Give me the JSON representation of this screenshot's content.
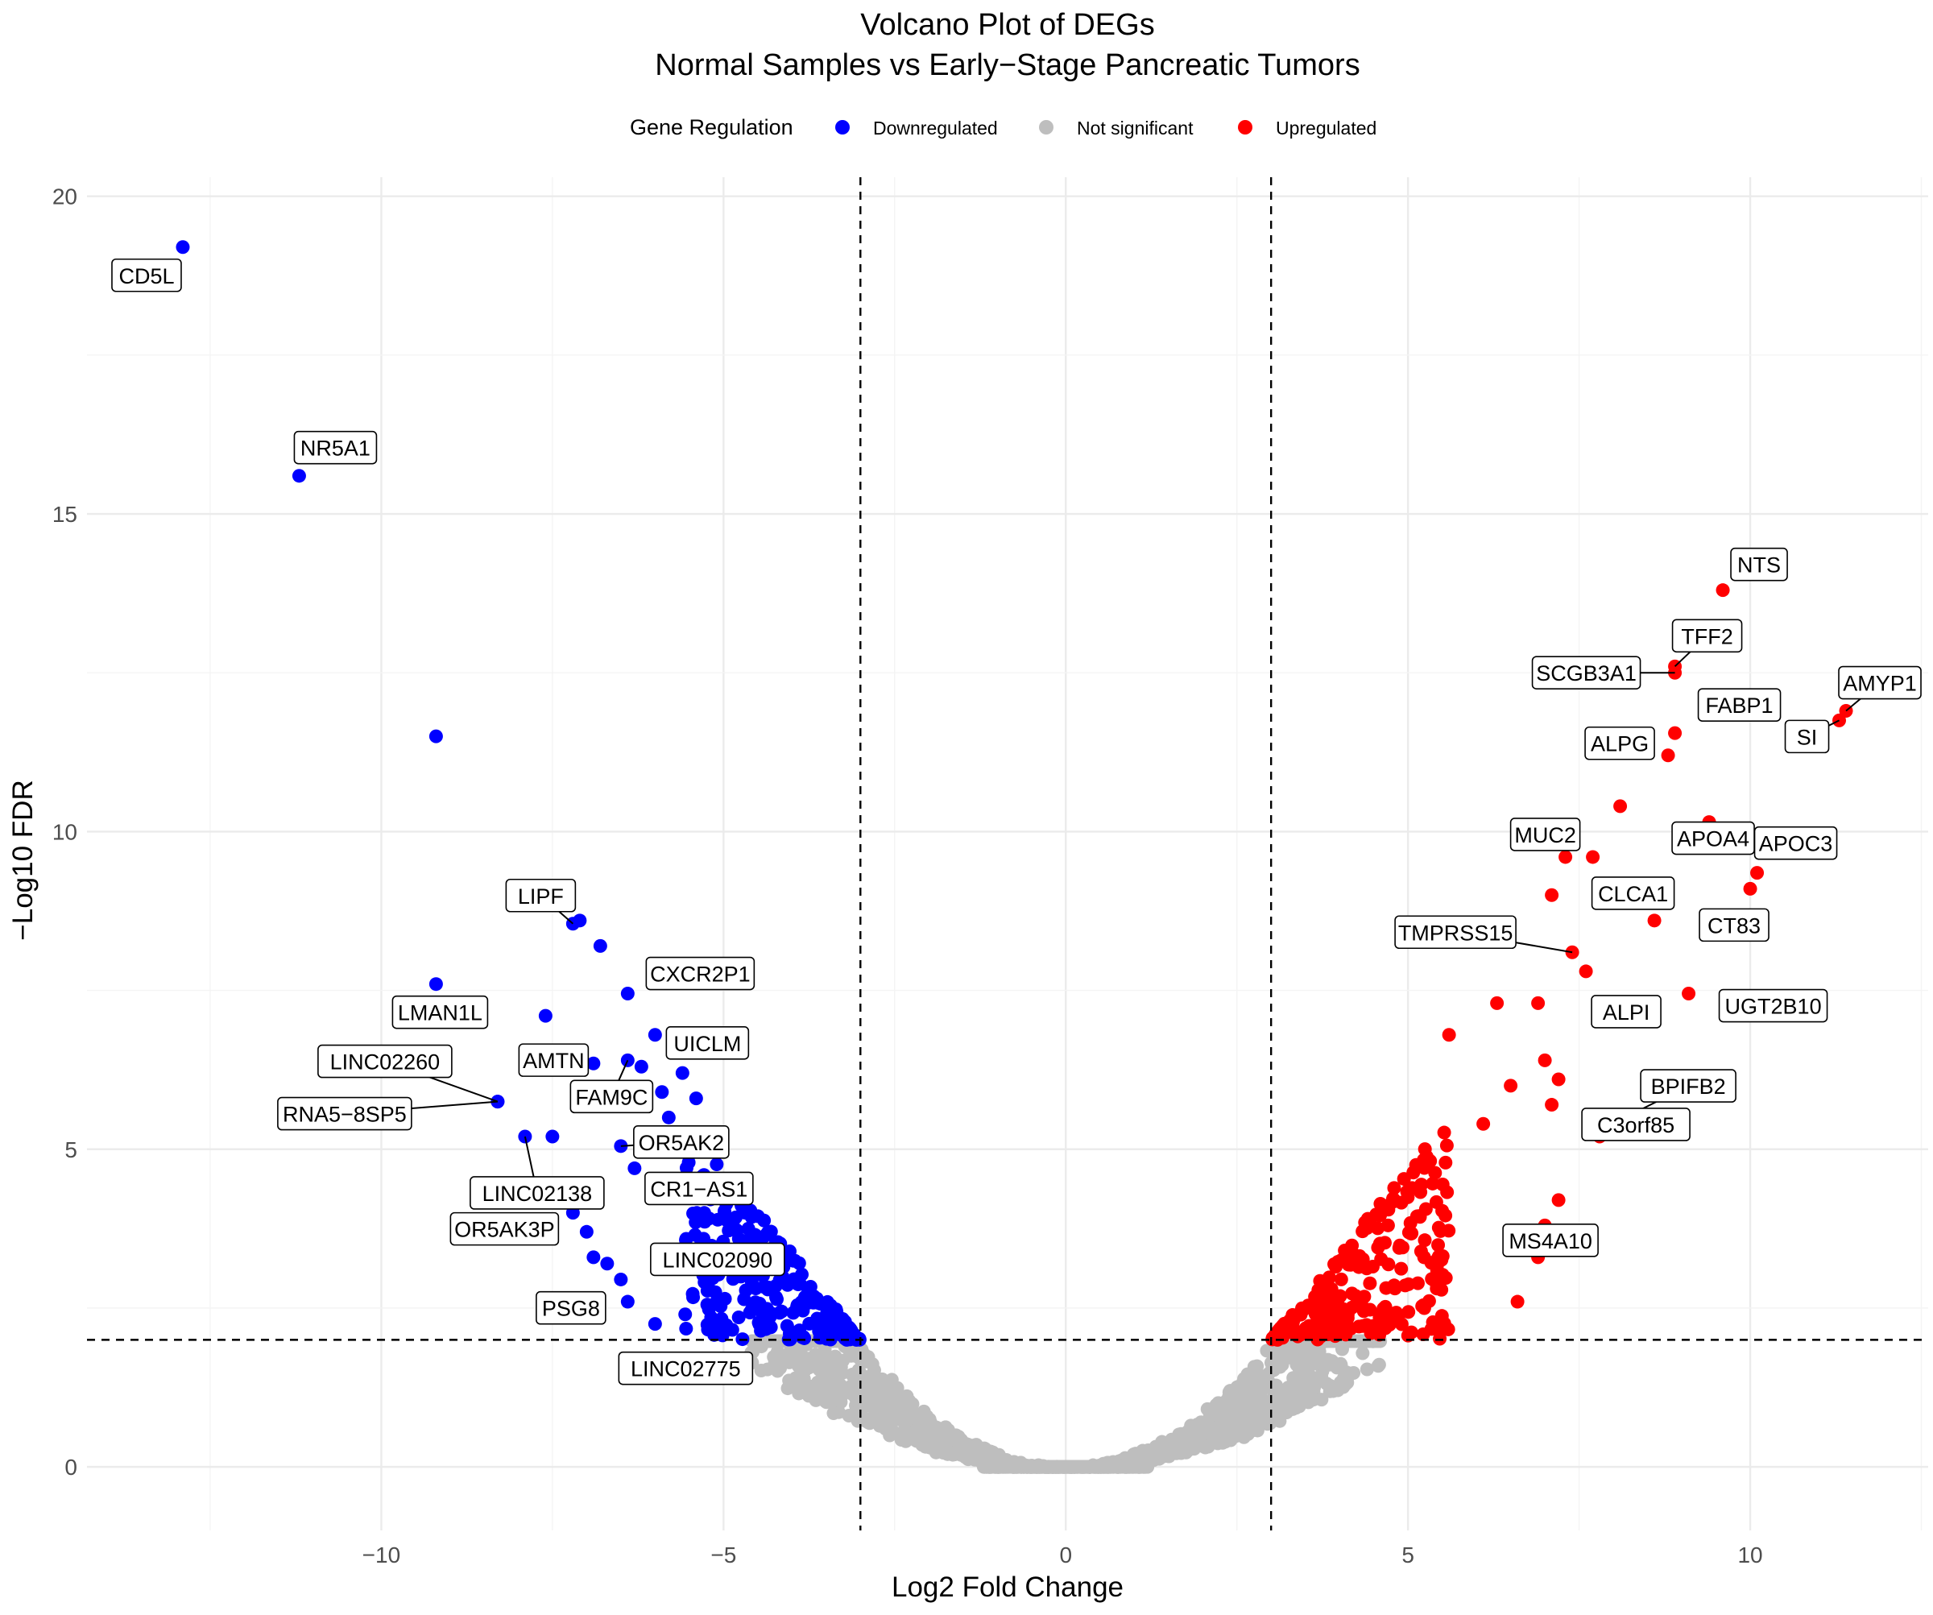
{
  "chart_data": {
    "type": "scatter",
    "title": "Volcano Plot of DEGs",
    "subtitle": "Normal Samples vs Early−Stage Pancreatic Tumors",
    "xlabel": "Log2 Fold Change",
    "ylabel": "−Log10 FDR",
    "xlim": [
      -14.3,
      12.6
    ],
    "ylim": [
      -1.0,
      20.3
    ],
    "x_ticks": [
      {
        "value": -10,
        "label": "−10"
      },
      {
        "value": -5,
        "label": "−5"
      },
      {
        "value": 0,
        "label": "0"
      },
      {
        "value": 5,
        "label": "5"
      },
      {
        "value": 10,
        "label": "10"
      }
    ],
    "y_ticks": [
      {
        "value": 0,
        "label": "0"
      },
      {
        "value": 5,
        "label": "5"
      },
      {
        "value": 10,
        "label": "10"
      },
      {
        "value": 15,
        "label": "15"
      },
      {
        "value": 20,
        "label": "20"
      }
    ],
    "thresholds": {
      "log2fc": [
        -3,
        3
      ],
      "neg_log10_fdr": 2
    },
    "grid": true,
    "legend": {
      "title": "Gene Regulation",
      "position": "top",
      "entries": [
        {
          "label": "Downregulated",
          "color": "#0000FF"
        },
        {
          "label": "Not significant",
          "color": "#BEBEBE"
        },
        {
          "label": "Upregulated",
          "color": "#FF0000"
        }
      ]
    },
    "labeled_genes": [
      {
        "gene": "CD5L",
        "x": -12.9,
        "y": 19.2,
        "regulation": "Downregulated"
      },
      {
        "gene": "NR5A1",
        "x": -11.2,
        "y": 15.6,
        "regulation": "Downregulated"
      },
      {
        "gene": "LIPF",
        "x": -7.2,
        "y": 8.55,
        "regulation": "Downregulated"
      },
      {
        "gene": "LMAN1L",
        "x": -9.2,
        "y": 7.6,
        "regulation": "Downregulated"
      },
      {
        "gene": "CXCR2P1",
        "x": -6.4,
        "y": 7.45,
        "regulation": "Downregulated"
      },
      {
        "gene": "UICLM",
        "x": -6.0,
        "y": 6.8,
        "regulation": "Downregulated"
      },
      {
        "gene": "AMTN",
        "x": -7.6,
        "y": 7.1,
        "regulation": "Downregulated"
      },
      {
        "gene": "FAM9C",
        "x": -6.4,
        "y": 6.4,
        "regulation": "Downregulated"
      },
      {
        "gene": "LINC02260",
        "x": -8.3,
        "y": 5.75,
        "regulation": "Downregulated"
      },
      {
        "gene": "RNA5−8SP5",
        "x": -8.3,
        "y": 5.75,
        "regulation": "Downregulated"
      },
      {
        "gene": "LINC02138",
        "x": -7.9,
        "y": 5.2,
        "regulation": "Downregulated"
      },
      {
        "gene": "OR5AK2",
        "x": -6.5,
        "y": 5.05,
        "regulation": "Downregulated"
      },
      {
        "gene": "CR1−AS1",
        "x": -6.3,
        "y": 4.7,
        "regulation": "Downregulated"
      },
      {
        "gene": "OR5AK3P",
        "x": -7.2,
        "y": 4.0,
        "regulation": "Downregulated"
      },
      {
        "gene": "LINC02090",
        "x": -6.5,
        "y": 2.95,
        "regulation": "Downregulated"
      },
      {
        "gene": "PSG8",
        "x": -6.7,
        "y": 3.2,
        "regulation": "Downregulated"
      },
      {
        "gene": "LINC02775",
        "x": -6.0,
        "y": 2.25,
        "regulation": "Downregulated"
      },
      {
        "gene": "NTS",
        "x": 9.6,
        "y": 13.8,
        "regulation": "Upregulated"
      },
      {
        "gene": "TFF2",
        "x": 8.9,
        "y": 12.6,
        "regulation": "Upregulated"
      },
      {
        "gene": "SCGB3A1",
        "x": 8.9,
        "y": 12.5,
        "regulation": "Upregulated"
      },
      {
        "gene": "FABP1",
        "x": 8.9,
        "y": 11.55,
        "regulation": "Upregulated"
      },
      {
        "gene": "ALPG",
        "x": 8.8,
        "y": 11.2,
        "regulation": "Upregulated"
      },
      {
        "gene": "AMYP1",
        "x": 11.4,
        "y": 11.9,
        "regulation": "Upregulated"
      },
      {
        "gene": "SI",
        "x": 11.3,
        "y": 11.75,
        "regulation": "Upregulated"
      },
      {
        "gene": "APOA4",
        "x": 9.4,
        "y": 10.15,
        "regulation": "Upregulated"
      },
      {
        "gene": "MUC2",
        "x": 7.3,
        "y": 9.6,
        "regulation": "Upregulated"
      },
      {
        "gene": "CLCA1",
        "x": 7.7,
        "y": 9.6,
        "regulation": "Upregulated"
      },
      {
        "gene": "APOC3",
        "x": 10.1,
        "y": 9.35,
        "regulation": "Upregulated"
      },
      {
        "gene": "CT83",
        "x": 10.0,
        "y": 9.1,
        "regulation": "Upregulated"
      },
      {
        "gene": "TMPRSS15",
        "x": 7.4,
        "y": 8.1,
        "regulation": "Upregulated"
      },
      {
        "gene": "ALPI",
        "x": 7.6,
        "y": 7.8,
        "regulation": "Upregulated"
      },
      {
        "gene": "UGT2B10",
        "x": 9.1,
        "y": 7.45,
        "regulation": "Upregulated"
      },
      {
        "gene": "BPIFB2",
        "x": 7.8,
        "y": 5.3,
        "regulation": "Upregulated"
      },
      {
        "gene": "C3orf85",
        "x": 7.8,
        "y": 5.2,
        "regulation": "Upregulated"
      },
      {
        "gene": "MS4A10",
        "x": 7.2,
        "y": 4.2,
        "regulation": "Upregulated"
      }
    ],
    "other_significant_points": [
      {
        "x": -9.2,
        "y": 11.5,
        "regulation": "Downregulated"
      },
      {
        "x": -6.8,
        "y": 8.2,
        "regulation": "Downregulated"
      },
      {
        "x": -7.1,
        "y": 8.6,
        "regulation": "Downregulated"
      },
      {
        "x": -6.9,
        "y": 6.35,
        "regulation": "Downregulated"
      },
      {
        "x": -6.2,
        "y": 6.3,
        "regulation": "Downregulated"
      },
      {
        "x": -5.9,
        "y": 5.9,
        "regulation": "Downregulated"
      },
      {
        "x": -5.6,
        "y": 6.2,
        "regulation": "Downregulated"
      },
      {
        "x": -5.8,
        "y": 5.5,
        "regulation": "Downregulated"
      },
      {
        "x": -5.4,
        "y": 5.8,
        "regulation": "Downregulated"
      },
      {
        "x": -7.5,
        "y": 5.2,
        "regulation": "Downregulated"
      },
      {
        "x": -7.0,
        "y": 3.7,
        "regulation": "Downregulated"
      },
      {
        "x": -6.9,
        "y": 3.3,
        "regulation": "Downregulated"
      },
      {
        "x": -6.4,
        "y": 2.6,
        "regulation": "Downregulated"
      },
      {
        "x": 5.6,
        "y": 6.8,
        "regulation": "Upregulated"
      },
      {
        "x": 6.3,
        "y": 7.3,
        "regulation": "Upregulated"
      },
      {
        "x": 6.9,
        "y": 7.3,
        "regulation": "Upregulated"
      },
      {
        "x": 8.6,
        "y": 8.6,
        "regulation": "Upregulated"
      },
      {
        "x": 8.1,
        "y": 10.4,
        "regulation": "Upregulated"
      },
      {
        "x": 7.1,
        "y": 9.0,
        "regulation": "Upregulated"
      },
      {
        "x": 7.2,
        "y": 6.1,
        "regulation": "Upregulated"
      },
      {
        "x": 7.0,
        "y": 6.4,
        "regulation": "Upregulated"
      },
      {
        "x": 6.5,
        "y": 6.0,
        "regulation": "Upregulated"
      },
      {
        "x": 7.1,
        "y": 5.7,
        "regulation": "Upregulated"
      },
      {
        "x": 6.1,
        "y": 5.4,
        "regulation": "Upregulated"
      },
      {
        "x": 7.0,
        "y": 3.8,
        "regulation": "Upregulated"
      },
      {
        "x": 6.9,
        "y": 3.3,
        "regulation": "Upregulated"
      },
      {
        "x": 6.6,
        "y": 2.6,
        "regulation": "Upregulated"
      }
    ],
    "cloud_shape": "V-shaped volcano: |log2FC| between about 3 and 5.5 with -log10 FDR roughly from 2 to 6 on both sides; non-significant genes form a grey parabola around 0"
  }
}
